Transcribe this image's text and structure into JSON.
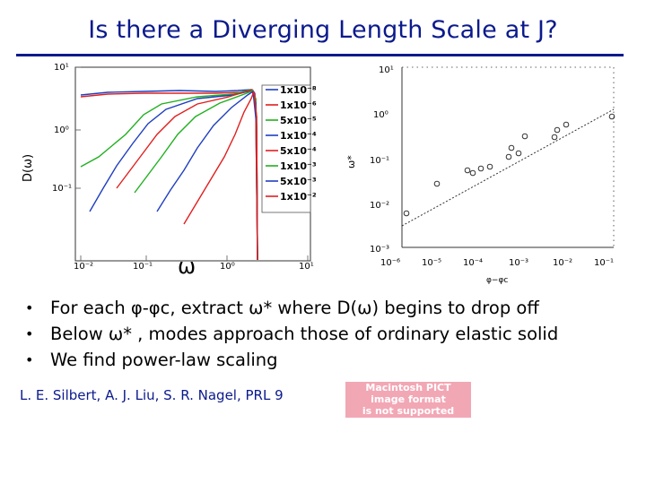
{
  "title": "Is there a Diverging Length Scale at J?",
  "left_plot": {
    "ylabel": "D(ω)",
    "xlabel": "ω",
    "y_ticks": [
      "10¹",
      "10⁰",
      "10⁻¹"
    ],
    "x_ticks": [
      "10⁻²",
      "10⁻¹",
      "10⁰",
      "10¹"
    ],
    "legend": [
      {
        "label": "1x10⁻⁸",
        "color": "#1f3fbf"
      },
      {
        "label": "1x10⁻⁶",
        "color": "#e02020"
      },
      {
        "label": "5x10⁻⁵",
        "color": "#20b020"
      },
      {
        "label": "1x10⁻⁴",
        "color": "#1f3fbf"
      },
      {
        "label": "5x10⁻⁴",
        "color": "#e02020"
      },
      {
        "label": "1x10⁻³",
        "color": "#20b020"
      },
      {
        "label": "5x10⁻³",
        "color": "#1f3fbf"
      },
      {
        "label": "1x10⁻²",
        "color": "#e02020"
      }
    ]
  },
  "right_plot": {
    "ylabel": "ω*",
    "xlabel": "φ−φc",
    "y_ticks": [
      "10¹",
      "10⁰",
      "10⁻¹",
      "10⁻²",
      "10⁻³"
    ],
    "x_ticks": [
      "10⁻⁶",
      "10⁻⁵",
      "10⁻⁴",
      "10⁻³",
      "10⁻²",
      "10⁻¹"
    ]
  },
  "bullets": [
    "For each φ-φc, extract ω* where D(ω) begins to drop off",
    "Below ω* , modes approach those of ordinary elastic solid",
    "We find power-law scaling"
  ],
  "citation": "L. E. Silbert, A. J. Liu, S. R. Nagel, PRL 9",
  "pict_notice": [
    "Macintosh PICT",
    "image format",
    "is not supported"
  ]
}
